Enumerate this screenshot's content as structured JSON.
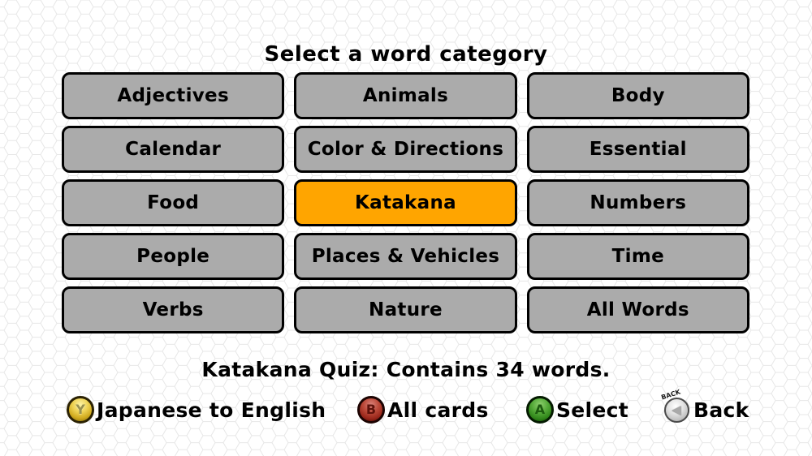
{
  "title": "Select a word category",
  "status": "Katakana Quiz: Contains 34 words.",
  "categories": [
    {
      "label": "Adjectives",
      "selected": false
    },
    {
      "label": "Animals",
      "selected": false
    },
    {
      "label": "Body",
      "selected": false
    },
    {
      "label": "Calendar",
      "selected": false
    },
    {
      "label": "Color & Directions",
      "selected": false
    },
    {
      "label": "Essential",
      "selected": false
    },
    {
      "label": "Food",
      "selected": false
    },
    {
      "label": "Katakana",
      "selected": true
    },
    {
      "label": "Numbers",
      "selected": false
    },
    {
      "label": "People",
      "selected": false
    },
    {
      "label": "Places & Vehicles",
      "selected": false
    },
    {
      "label": "Time",
      "selected": false
    },
    {
      "label": "Verbs",
      "selected": false
    },
    {
      "label": "Nature",
      "selected": false
    },
    {
      "label": "All Words",
      "selected": false
    }
  ],
  "hints": [
    {
      "button": "Y",
      "label": "Japanese to English",
      "color": "#E3C53B"
    },
    {
      "button": "B",
      "label": "All cards",
      "color": "#A5281B"
    },
    {
      "button": "A",
      "label": "Select",
      "color": "#3E9B2A"
    },
    {
      "button": "BACK",
      "label": "Back",
      "color": "#C8C8C8"
    }
  ],
  "colors": {
    "selected_category": "#FFA500",
    "category_button": "#ABABAB",
    "button_border": "#000000",
    "background": "#FFFFFF",
    "hex_pattern_line": "#E7E7E7"
  }
}
